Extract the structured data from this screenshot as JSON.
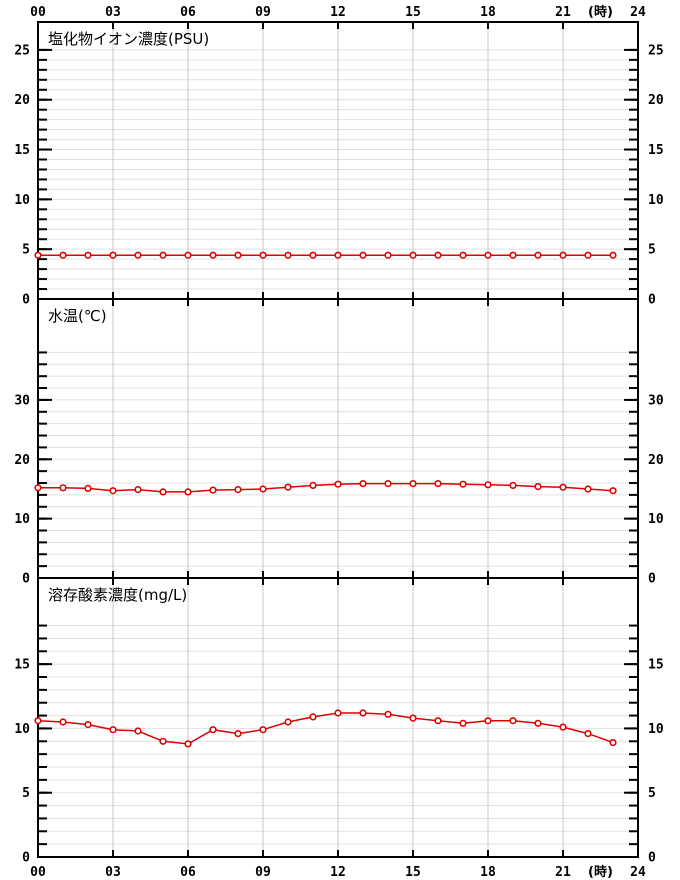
{
  "figure": {
    "background": "#ffffff",
    "x_axis": {
      "tick_hours": [
        0,
        3,
        6,
        9,
        12,
        15,
        18,
        21,
        24
      ],
      "tick_labels": [
        "00",
        "03",
        "06",
        "09",
        "12",
        "15",
        "18",
        "21",
        "24"
      ],
      "unit_label": "(時)",
      "unit_position_hours": 22.5,
      "xlim": [
        0,
        24
      ],
      "labels_on_top": true,
      "labels_on_bottom": true
    },
    "colors": {
      "line": "#e00000",
      "marker_fill": "#ffffff",
      "grid_vertical": "#c9c9c9",
      "grid_horizontal": "#e0e0e0",
      "frame": "#000000",
      "text": "#000000"
    }
  },
  "chart_data": [
    {
      "type": "line",
      "title": "塩化物イオン濃度(PSU)",
      "x": [
        0,
        1,
        2,
        3,
        4,
        5,
        6,
        7,
        8,
        9,
        10,
        11,
        12,
        13,
        14,
        15,
        16,
        17,
        18,
        19,
        20,
        21,
        22,
        23
      ],
      "values": [
        4.4,
        4.4,
        4.4,
        4.4,
        4.4,
        4.4,
        4.4,
        4.4,
        4.4,
        4.4,
        4.4,
        4.4,
        4.4,
        4.4,
        4.4,
        4.4,
        4.4,
        4.4,
        4.4,
        4.4,
        4.4,
        4.4,
        4.4,
        4.4
      ],
      "xlim": [
        0,
        24
      ],
      "ylim": [
        0,
        27.8
      ],
      "y_major_ticks": [
        0,
        5,
        10,
        15,
        20,
        25
      ],
      "y_minor_step": 1,
      "y_grid_max": 25,
      "grid": true,
      "legend": "none",
      "marker": "open-circle"
    },
    {
      "type": "line",
      "title": "水温(℃)",
      "x": [
        0,
        1,
        2,
        3,
        4,
        5,
        6,
        7,
        8,
        9,
        10,
        11,
        12,
        13,
        14,
        15,
        16,
        17,
        18,
        19,
        20,
        21,
        22,
        23
      ],
      "values": [
        15.2,
        15.2,
        15.1,
        14.7,
        14.9,
        14.5,
        14.5,
        14.8,
        14.9,
        15.0,
        15.3,
        15.6,
        15.8,
        15.9,
        15.9,
        15.9,
        15.9,
        15.8,
        15.7,
        15.6,
        15.4,
        15.3,
        15.0,
        14.7
      ],
      "xlim": [
        0,
        24
      ],
      "ylim": [
        0,
        47
      ],
      "y_major_ticks": [
        0,
        10,
        20,
        30
      ],
      "y_minor_step": 2,
      "y_grid_max": 38,
      "grid": true,
      "legend": "none",
      "marker": "open-circle"
    },
    {
      "type": "line",
      "title": "溶存酸素濃度(mg/L)",
      "x": [
        0,
        1,
        2,
        3,
        4,
        5,
        6,
        7,
        8,
        9,
        10,
        11,
        12,
        13,
        14,
        15,
        16,
        17,
        18,
        19,
        20,
        21,
        22,
        23
      ],
      "values": [
        10.6,
        10.5,
        10.3,
        9.9,
        9.8,
        9.0,
        8.8,
        9.9,
        9.6,
        9.9,
        10.5,
        10.9,
        11.2,
        11.2,
        11.1,
        10.8,
        10.6,
        10.4,
        10.6,
        10.6,
        10.4,
        10.1,
        9.6,
        8.9
      ],
      "xlim": [
        0,
        24
      ],
      "ylim": [
        0,
        21.7
      ],
      "y_major_ticks": [
        0,
        5,
        10,
        15
      ],
      "y_minor_step": 1,
      "y_grid_max": 18,
      "grid": true,
      "legend": "none",
      "marker": "open-circle"
    }
  ]
}
